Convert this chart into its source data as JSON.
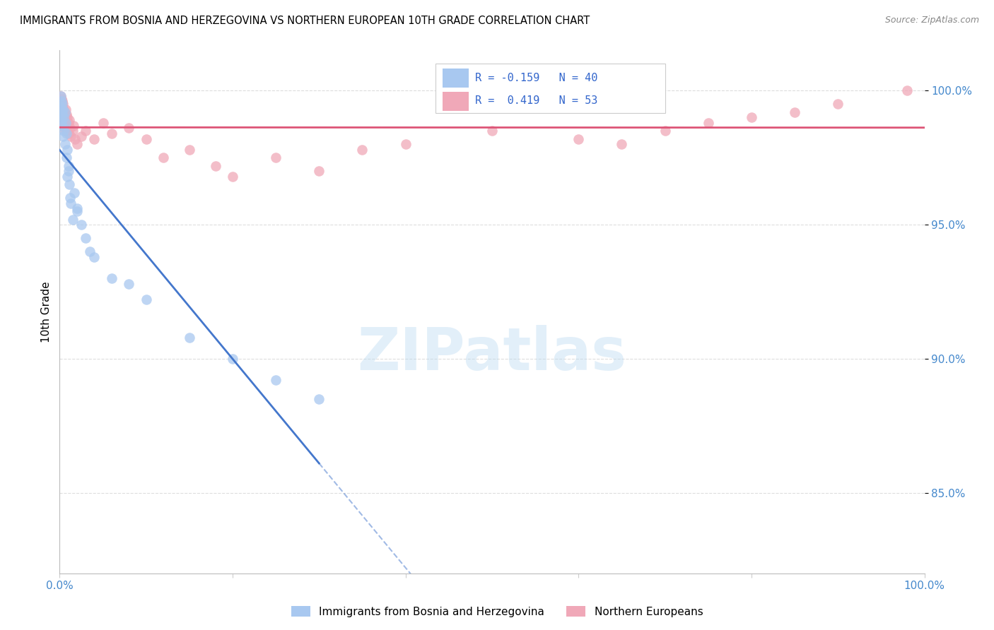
{
  "title": "IMMIGRANTS FROM BOSNIA AND HERZEGOVINA VS NORTHERN EUROPEAN 10TH GRADE CORRELATION CHART",
  "source": "Source: ZipAtlas.com",
  "ylabel": "10th Grade",
  "ytick_vals": [
    0.85,
    0.9,
    0.95,
    1.0
  ],
  "legend_label1": "Immigrants from Bosnia and Herzegovina",
  "legend_label2": "Northern Europeans",
  "R1": -0.159,
  "N1": 40,
  "R2": 0.419,
  "N2": 53,
  "color1": "#a8c8f0",
  "color2": "#f0a8b8",
  "line_color1": "#4477cc",
  "line_color2": "#dd5577",
  "watermark": "ZIPatlas",
  "xlim": [
    0.0,
    1.0
  ],
  "ylim": [
    0.82,
    1.015
  ],
  "bosnia_x": [
    0.001,
    0.001,
    0.001,
    0.002,
    0.002,
    0.002,
    0.003,
    0.003,
    0.003,
    0.004,
    0.004,
    0.005,
    0.005,
    0.006,
    0.006,
    0.007,
    0.008,
    0.009,
    0.01,
    0.011,
    0.013,
    0.015,
    0.017,
    0.02,
    0.025,
    0.03,
    0.008,
    0.009,
    0.01,
    0.012,
    0.04,
    0.06,
    0.08,
    0.1,
    0.15,
    0.2,
    0.25,
    0.3,
    0.02,
    0.035
  ],
  "bosnia_y": [
    0.998,
    0.994,
    0.99,
    0.996,
    0.992,
    0.988,
    0.995,
    0.991,
    0.987,
    0.993,
    0.983,
    0.99,
    0.985,
    0.992,
    0.98,
    0.988,
    0.984,
    0.978,
    0.97,
    0.965,
    0.958,
    0.952,
    0.962,
    0.955,
    0.95,
    0.945,
    0.975,
    0.968,
    0.972,
    0.96,
    0.938,
    0.93,
    0.928,
    0.922,
    0.908,
    0.9,
    0.892,
    0.885,
    0.956,
    0.94
  ],
  "northern_x": [
    0.001,
    0.001,
    0.001,
    0.002,
    0.002,
    0.002,
    0.003,
    0.003,
    0.003,
    0.004,
    0.004,
    0.005,
    0.005,
    0.006,
    0.006,
    0.007,
    0.007,
    0.008,
    0.008,
    0.009,
    0.01,
    0.01,
    0.011,
    0.012,
    0.013,
    0.015,
    0.016,
    0.018,
    0.02,
    0.025,
    0.03,
    0.04,
    0.05,
    0.06,
    0.08,
    0.1,
    0.12,
    0.15,
    0.18,
    0.2,
    0.25,
    0.3,
    0.35,
    0.4,
    0.5,
    0.6,
    0.65,
    0.7,
    0.75,
    0.8,
    0.85,
    0.9,
    0.98
  ],
  "northern_y": [
    0.998,
    0.994,
    0.991,
    0.997,
    0.993,
    0.99,
    0.996,
    0.992,
    0.989,
    0.995,
    0.988,
    0.993,
    0.987,
    0.991,
    0.985,
    0.993,
    0.988,
    0.991,
    0.985,
    0.99,
    0.988,
    0.984,
    0.989,
    0.986,
    0.983,
    0.985,
    0.987,
    0.982,
    0.98,
    0.983,
    0.985,
    0.982,
    0.988,
    0.984,
    0.986,
    0.982,
    0.975,
    0.978,
    0.972,
    0.968,
    0.975,
    0.97,
    0.978,
    0.98,
    0.985,
    0.982,
    0.98,
    0.985,
    0.988,
    0.99,
    0.992,
    0.995,
    1.0
  ]
}
